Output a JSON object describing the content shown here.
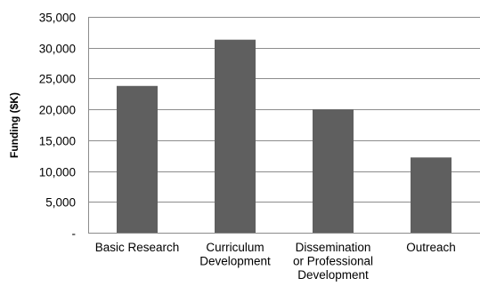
{
  "chart_data": {
    "type": "bar",
    "categories": [
      [
        "Basic Research"
      ],
      [
        "Curriculum",
        "Development"
      ],
      [
        "Dissemination",
        "or Professional",
        "Development"
      ],
      [
        "Outreach"
      ]
    ],
    "values": [
      23800,
      31300,
      20000,
      12200
    ],
    "title": "",
    "xlabel": "",
    "ylabel": "Funding ($K)",
    "ylim": [
      0,
      35000
    ],
    "yticks": [
      0,
      5000,
      10000,
      15000,
      20000,
      25000,
      30000,
      35000
    ],
    "ytick_labels": [
      "-",
      "5,000",
      "10,000",
      "15,000",
      "20,000",
      "25,000",
      "30,000",
      "35,000"
    ],
    "grid": true,
    "legend": "none",
    "bar_color": "#5f5f5f",
    "gridline_color": "#8c8c8c"
  }
}
